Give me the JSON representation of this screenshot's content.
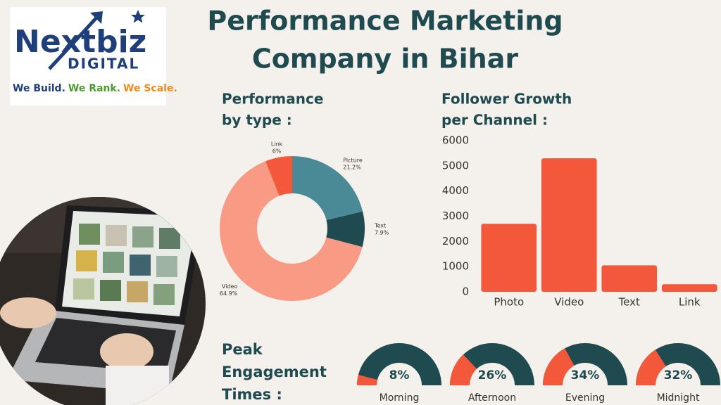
{
  "logo": {
    "brand": "Nextbiz",
    "sub": "DIGITAL",
    "tagline": [
      {
        "text": "We Build.",
        "color": "#1f3f7a"
      },
      {
        "text": "We Rank.",
        "color": "#4c9a2a"
      },
      {
        "text": "We Scale.",
        "color": "#f08a1c"
      }
    ]
  },
  "title": [
    "Performance Marketing",
    "Company in Bihar"
  ],
  "chart_data": [
    {
      "type": "pie",
      "title": [
        "Performance",
        "by type :"
      ],
      "categories": [
        "Picture",
        "Text",
        "Video",
        "Link"
      ],
      "values": [
        21.2,
        7.9,
        64.9,
        6
      ],
      "value_labels": [
        "21.2%",
        "7.9%",
        "64.9%",
        "6%"
      ],
      "colors": [
        "#4a8a96",
        "#1f4a4f",
        "#f99a85",
        "#f4583a"
      ]
    },
    {
      "type": "bar",
      "title": [
        "Follower Growth",
        "per Channel :"
      ],
      "categories": [
        "Photo",
        "Video",
        "Text",
        "Link"
      ],
      "values": [
        2700,
        5300,
        1050,
        300
      ],
      "color": "#f4583a",
      "ylim": [
        0,
        6000
      ],
      "yticks": [
        0,
        1000,
        2000,
        3000,
        4000,
        5000,
        6000
      ]
    },
    {
      "type": "gauge",
      "title": [
        "Peak",
        "Engagement",
        "Times :"
      ],
      "categories": [
        "Morning",
        "Afternoon",
        "Evening",
        "Midnight"
      ],
      "values": [
        8,
        26,
        34,
        32
      ],
      "value_labels": [
        "8%",
        "26%",
        "34%",
        "32%"
      ],
      "ylim": [
        0,
        100
      ],
      "color": "#f4583a",
      "track_color": "#1f4a4f"
    }
  ]
}
